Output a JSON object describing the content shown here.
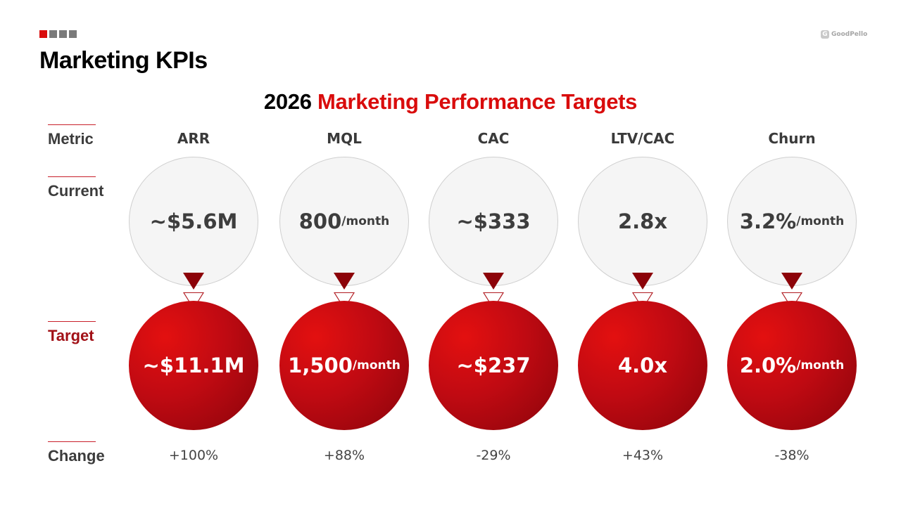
{
  "colors": {
    "accent": "#d90c0c",
    "deep_red": "#8c0309",
    "gray": "#7a7a7a",
    "text": "#3c3c3c"
  },
  "brand": {
    "mark": "G",
    "name": "GoodPello"
  },
  "page_title": "Marketing KPIs",
  "subtitle": {
    "year": "2026",
    "highlight": "Marketing Performance Targets"
  },
  "row_labels": {
    "metric": "Metric",
    "current": "Current",
    "target": "Target",
    "change": "Change"
  },
  "kpis": [
    {
      "metric": "ARR",
      "current": "~$5.6M",
      "current_unit": "",
      "target": "~$11.1M",
      "target_unit": "",
      "change": "+100%"
    },
    {
      "metric": "MQL",
      "current": "800",
      "current_unit": "/month",
      "target": "1,500",
      "target_unit": "/month",
      "change": "+88%"
    },
    {
      "metric": "CAC",
      "current": "~$333",
      "current_unit": "",
      "target": "~$237",
      "target_unit": "",
      "change": "-29%"
    },
    {
      "metric": "LTV/CAC",
      "current": "2.8x",
      "current_unit": "",
      "target": "4.0x",
      "target_unit": "",
      "change": "+43%"
    },
    {
      "metric": "Churn",
      "current": "3.2%",
      "current_unit": "/month",
      "target": "2.0%",
      "target_unit": "/month",
      "change": "-38%"
    }
  ]
}
